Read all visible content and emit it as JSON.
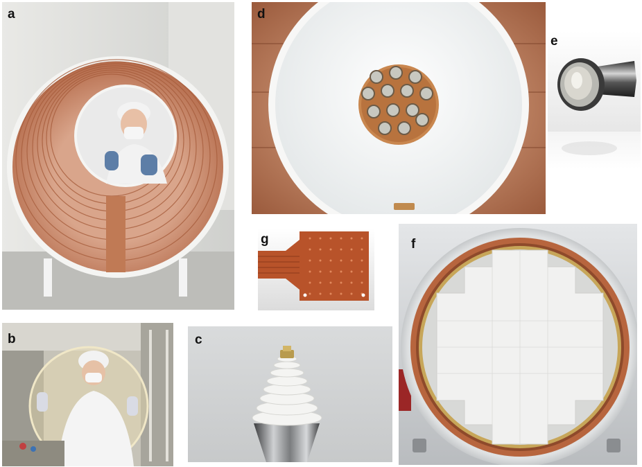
{
  "panels": [
    {
      "id": "a",
      "label": "a"
    },
    {
      "id": "b",
      "label": "b"
    },
    {
      "id": "c",
      "label": "c"
    },
    {
      "id": "d",
      "label": "d"
    },
    {
      "id": "e",
      "label": "e"
    },
    {
      "id": "f",
      "label": "f"
    },
    {
      "id": "g",
      "label": "g"
    }
  ]
}
